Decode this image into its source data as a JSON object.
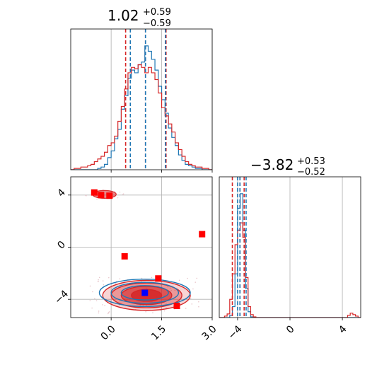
{
  "chart_data": [
    {
      "type": "histogram",
      "panel": "marginal-param-1",
      "title": {
        "value": "1.02",
        "plus": "+0.59",
        "minus": "−0.59"
      },
      "xlim": [
        -1.2,
        3.0
      ],
      "quantiles": {
        "blue": [
          0.57,
          1.02,
          1.61
        ],
        "red": [
          0.43,
          1.02,
          1.63
        ]
      },
      "bin_centers": [
        -1.15,
        -1.05,
        -0.95,
        -0.85,
        -0.75,
        -0.65,
        -0.55,
        -0.45,
        -0.35,
        -0.25,
        -0.15,
        -0.05,
        0.05,
        0.15,
        0.25,
        0.35,
        0.45,
        0.55,
        0.65,
        0.75,
        0.85,
        0.95,
        1.05,
        1.15,
        1.25,
        1.35,
        1.45,
        1.55,
        1.65,
        1.75,
        1.85,
        1.95,
        2.05,
        2.15,
        2.25,
        2.35,
        2.45,
        2.55,
        2.65,
        2.75,
        2.85,
        2.95
      ],
      "series": [
        {
          "color": "#1f77b4",
          "counts": [
            0,
            0,
            0,
            0,
            0,
            0,
            0,
            0,
            1,
            2,
            4,
            9,
            14,
            23,
            30,
            45,
            55,
            68,
            74,
            72,
            78,
            80,
            92,
            88,
            82,
            74,
            62,
            52,
            42,
            31,
            24,
            18,
            11,
            7,
            4,
            3,
            2,
            1,
            1,
            0,
            0,
            0
          ]
        },
        {
          "color": "#d62728",
          "counts": [
            0,
            1,
            1,
            2,
            2,
            3,
            4,
            6,
            8,
            10,
            13,
            18,
            20,
            25,
            36,
            47,
            60,
            72,
            76,
            75,
            78,
            76,
            72,
            76,
            72,
            67,
            57,
            46,
            40,
            34,
            28,
            20,
            15,
            10,
            6,
            4,
            3,
            2,
            2,
            1,
            1,
            0
          ]
        }
      ]
    },
    {
      "type": "histogram",
      "panel": "marginal-param-2",
      "title": {
        "value": "−3.82",
        "plus": "+0.53",
        "minus": "−0.52"
      },
      "xlim": [
        -5.4,
        5.4
      ],
      "quantiles": {
        "blue": [
          -4.0,
          -3.82,
          -3.35
        ],
        "red": [
          -4.4,
          -3.82,
          -3.5
        ]
      },
      "bin_centers": [
        -5.3,
        -5.1,
        -4.9,
        -4.7,
        -4.5,
        -4.3,
        -4.1,
        -3.9,
        -3.7,
        -3.5,
        -3.3,
        -3.1,
        -2.9,
        -2.7,
        -2.5,
        -2.3,
        -2.1,
        -1.9,
        -1.7,
        -1.5,
        -1.3,
        -1.1,
        -0.9,
        -0.7,
        -0.5,
        -0.3,
        -0.1,
        0.1,
        0.3,
        0.5,
        0.7,
        0.9,
        1.1,
        1.3,
        1.5,
        1.7,
        1.9,
        2.1,
        2.3,
        2.5,
        2.7,
        2.9,
        3.1,
        3.3,
        3.5,
        3.7,
        3.9,
        4.1,
        4.3,
        4.5,
        4.7,
        4.9,
        5.1,
        5.3
      ],
      "series": [
        {
          "color": "#1f77b4",
          "counts": [
            0,
            0,
            0,
            0,
            3,
            15,
            60,
            150,
            170,
            120,
            40,
            8,
            1,
            0,
            0,
            0,
            0,
            0,
            0,
            0,
            0,
            0,
            0,
            0,
            0,
            0,
            0,
            0,
            0,
            0,
            0,
            0,
            0,
            0,
            0,
            0,
            0,
            0,
            0,
            0,
            0,
            0,
            0,
            0,
            0,
            0,
            0,
            0,
            0,
            0,
            0,
            0,
            0,
            0
          ]
        },
        {
          "color": "#d62728",
          "counts": [
            0,
            0,
            2,
            5,
            25,
            60,
            100,
            120,
            130,
            110,
            55,
            15,
            4,
            1,
            0,
            0,
            0,
            0,
            0,
            0,
            0,
            0,
            0,
            0,
            0,
            0,
            0,
            0,
            0,
            0,
            0,
            0,
            0,
            0,
            0,
            0,
            0,
            0,
            0,
            0,
            0,
            0,
            0,
            0,
            0,
            0,
            0,
            0,
            0,
            3,
            6,
            4,
            2,
            0
          ]
        }
      ]
    },
    {
      "type": "scatter",
      "panel": "joint-param-1-vs-param-2",
      "xlim": [
        -1.2,
        3.0
      ],
      "ylim": [
        -5.4,
        5.4
      ],
      "x_ticks": [
        "0.0",
        "1.5",
        "3.0"
      ],
      "y_ticks": [
        "−4",
        "0",
        "4"
      ],
      "red_points": [
        {
          "x": -0.5,
          "y": 4.2
        },
        {
          "x": -0.3,
          "y": 4.0
        },
        {
          "x": -0.05,
          "y": 3.95
        },
        {
          "x": 0.4,
          "y": -0.7
        },
        {
          "x": 1.4,
          "y": -2.4
        },
        {
          "x": 1.95,
          "y": -4.5
        },
        {
          "x": 2.7,
          "y": 1.0
        }
      ],
      "blue_points": [
        {
          "x": 1.0,
          "y": -3.5
        }
      ],
      "contours": {
        "red": {
          "cx": 1.05,
          "cy": -3.7,
          "rx": [
            1.3,
            1.05,
            0.75,
            0.45
          ],
          "ry": [
            1.15,
            0.95,
            0.7,
            0.45
          ]
        },
        "blue": {
          "cx": 1.0,
          "cy": -3.5,
          "rx": [
            1.35,
            1.0,
            0.7
          ],
          "ry": [
            1.05,
            0.8,
            0.55
          ]
        },
        "red_secondary": {
          "cx": -0.2,
          "cy": 4.05,
          "rx": 0.35,
          "ry": 0.3
        }
      }
    }
  ],
  "axis_ticks": {
    "param2_x_ticks": [
      "−4",
      "0",
      "4"
    ]
  },
  "colors": {
    "blue": "#1f77b4",
    "red": "#d62728",
    "grid": "#b0b0b0",
    "contour_fill": "#d62728"
  }
}
